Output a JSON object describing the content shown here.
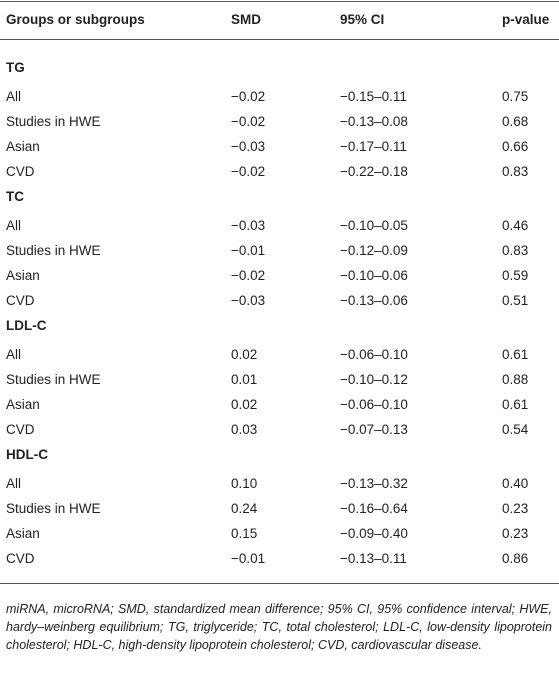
{
  "table": {
    "header": [
      "Groups or subgroups",
      "SMD",
      "95% CI",
      "p-value"
    ],
    "groups": [
      {
        "name": "TG",
        "rows": [
          [
            "All",
            "−0.02",
            "−0.15–0.11",
            "0.75"
          ],
          [
            "Studies in HWE",
            "−0.02",
            "−0.13–0.08",
            "0.68"
          ],
          [
            "Asian",
            "−0.03",
            "−0.17–0.11",
            "0.66"
          ],
          [
            "CVD",
            "−0.02",
            "−0.22–0.18",
            "0.83"
          ]
        ]
      },
      {
        "name": "TC",
        "rows": [
          [
            "All",
            "−0.03",
            "−0.10–0.05",
            "0.46"
          ],
          [
            "Studies in HWE",
            "−0.01",
            "−0.12–0.09",
            "0.83"
          ],
          [
            "Asian",
            "−0.02",
            "−0.10–0.06",
            "0.59"
          ],
          [
            "CVD",
            "−0.03",
            "−0.13–0.06",
            "0.51"
          ]
        ]
      },
      {
        "name": "LDL-C",
        "rows": [
          [
            "All",
            "0.02",
            "−0.06–0.10",
            "0.61"
          ],
          [
            "Studies in HWE",
            "0.01",
            "−0.10–0.12",
            "0.88"
          ],
          [
            "Asian",
            "0.02",
            "−0.06–0.10",
            "0.61"
          ],
          [
            "CVD",
            "0.03",
            "−0.07–0.13",
            "0.54"
          ]
        ]
      },
      {
        "name": "HDL-C",
        "rows": [
          [
            "All",
            "0.10",
            "−0.13–0.32",
            "0.40"
          ],
          [
            "Studies in HWE",
            "0.24",
            "−0.16–0.64",
            "0.23"
          ],
          [
            "Asian",
            "0.15",
            "−0.09–0.40",
            "0.23"
          ],
          [
            "CVD",
            "−0.01",
            "−0.13–0.11",
            "0.86"
          ]
        ]
      }
    ],
    "footnote": "miRNA, microRNA; SMD, standardized mean difference; 95% CI, 95% confidence interval; HWE, hardy–weinberg equilibrium; TG, triglyceride; TC, total cholesterol; LDL-C, low-density lipoprotein cholesterol; HDL-C, high-density lipoprotein cholesterol; CVD, cardiovascular disease."
  }
}
